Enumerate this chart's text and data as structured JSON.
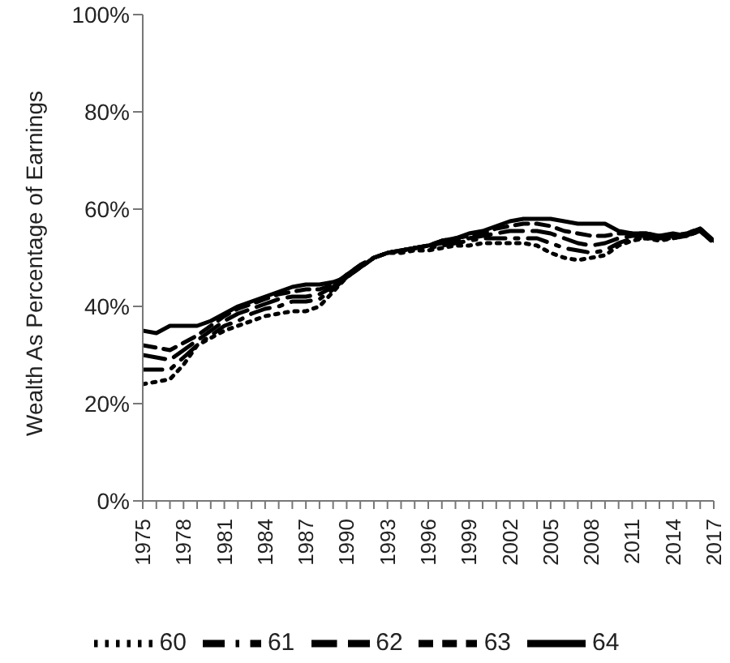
{
  "chart_data": {
    "type": "line",
    "ylabel": "Wealth As Percentage of Earnings",
    "categories": [
      "1975",
      null,
      null,
      "1978",
      null,
      null,
      "1981",
      null,
      null,
      "1984",
      null,
      null,
      "1987",
      null,
      null,
      "1990",
      null,
      null,
      "1993",
      null,
      null,
      "1996",
      null,
      null,
      "1999",
      null,
      null,
      "2002",
      null,
      null,
      "2005",
      null,
      null,
      "2008",
      null,
      null,
      "2011",
      null,
      null,
      "2014",
      null,
      null,
      "2017"
    ],
    "ylim": [
      0,
      100
    ],
    "yticks": [
      {
        "value": 0,
        "label": "0%"
      },
      {
        "value": 20,
        "label": "20%"
      },
      {
        "value": 40,
        "label": "40%"
      },
      {
        "value": 60,
        "label": "60%"
      },
      {
        "value": 80,
        "label": "80%"
      },
      {
        "value": 100,
        "label": "100%"
      }
    ],
    "legend": "bottom",
    "marker": "none",
    "series": [
      {
        "name": "60",
        "color": "#000000",
        "line_style": "dotted",
        "values": [
          24,
          24.5,
          25,
          28,
          32,
          33.5,
          35,
          36,
          37,
          38,
          38.5,
          39,
          39,
          40,
          43,
          46,
          48,
          50,
          51,
          51,
          51.5,
          51.5,
          52,
          52.5,
          52.5,
          53,
          53,
          53,
          53,
          52.5,
          51,
          50,
          49.5,
          50,
          50.5,
          52.5,
          53.5,
          54,
          53.5,
          54,
          54.5,
          55.5,
          53
        ]
      },
      {
        "name": "61",
        "color": "#000000",
        "line_style": "dashdot",
        "values": [
          27,
          27,
          27,
          29.5,
          32,
          34,
          36,
          37,
          38.5,
          39.5,
          40,
          41,
          41,
          41.5,
          43.5,
          46,
          48,
          50,
          51,
          51.5,
          52,
          52,
          52.5,
          53,
          53.5,
          54,
          54,
          54,
          54,
          54,
          53,
          52,
          51.5,
          51,
          51.5,
          53,
          54,
          54,
          54,
          54,
          54.5,
          55.5,
          53
        ]
      },
      {
        "name": "62",
        "color": "#000000",
        "line_style": "longdash",
        "values": [
          30,
          29.5,
          29,
          31,
          33,
          35,
          37,
          38.5,
          39.5,
          40.5,
          41.5,
          42,
          42,
          42.5,
          44,
          46.5,
          48.5,
          50,
          51,
          51.5,
          52,
          52.5,
          53,
          53.5,
          54,
          54.5,
          55,
          55.5,
          55.5,
          55.5,
          55,
          54,
          53,
          52.5,
          53,
          54,
          54.5,
          54.5,
          54.5,
          54.5,
          55,
          56,
          53
        ]
      },
      {
        "name": "63",
        "color": "#000000",
        "line_style": "dashed",
        "values": [
          32,
          31.5,
          31,
          32.5,
          34,
          36,
          38,
          39.5,
          40.5,
          41.5,
          42.5,
          43,
          43.5,
          43.5,
          44.5,
          46.5,
          48.5,
          50,
          51,
          51.5,
          52,
          52.5,
          53.5,
          54,
          54.5,
          55,
          56,
          56.5,
          57,
          57,
          56.5,
          55.5,
          55,
          54.5,
          54.5,
          55,
          55,
          55,
          54.5,
          54.5,
          55,
          56,
          53.5
        ]
      },
      {
        "name": "64",
        "color": "#000000",
        "line_style": "solid",
        "values": [
          35,
          34.5,
          36,
          36,
          36,
          37,
          38.5,
          40,
          41,
          42,
          43,
          44,
          44.5,
          44.5,
          45,
          46,
          48,
          50,
          51,
          51.5,
          52,
          52.5,
          53.5,
          54,
          55,
          55.5,
          56.5,
          57.5,
          58,
          58,
          58,
          57.5,
          57,
          57,
          57,
          55.5,
          55,
          55,
          54.5,
          55,
          54.5,
          56,
          53.5
        ]
      }
    ]
  }
}
